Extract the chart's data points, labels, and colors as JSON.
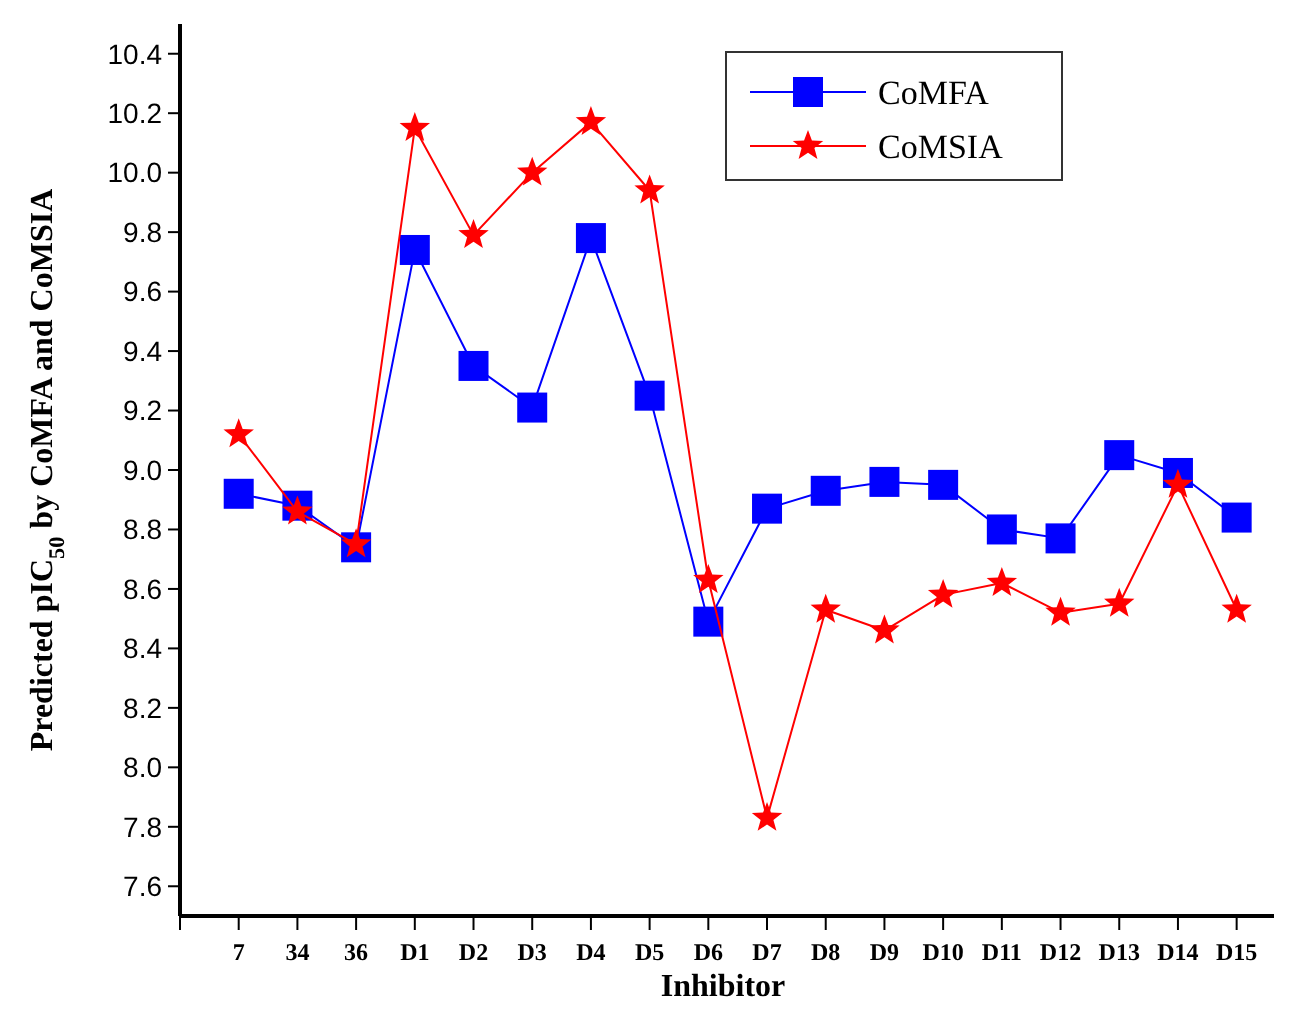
{
  "chart_data": {
    "type": "line",
    "xlabel": "Inhibitor",
    "ylabel": "Predicted pIC$_{50}$ by CoMFA and CoMSIA",
    "categories": [
      "7",
      "34",
      "36",
      "D1",
      "D2",
      "D3",
      "D4",
      "D5",
      "D6",
      "D7",
      "D8",
      "D9",
      "D10",
      "D11",
      "D12",
      "D13",
      "D14",
      "D15"
    ],
    "series": [
      {
        "name": "CoMFA",
        "color": "#0000ff",
        "marker": "square",
        "values": [
          8.92,
          8.88,
          8.74,
          9.74,
          9.35,
          9.21,
          9.78,
          9.25,
          8.49,
          8.87,
          8.93,
          8.96,
          8.95,
          8.8,
          8.77,
          9.05,
          8.99,
          8.84
        ]
      },
      {
        "name": "CoMSIA",
        "color": "#ff0000",
        "marker": "star",
        "values": [
          9.12,
          8.86,
          8.75,
          10.15,
          9.79,
          10.0,
          10.17,
          9.94,
          8.63,
          7.83,
          8.53,
          8.46,
          8.58,
          8.62,
          8.52,
          8.55,
          8.95,
          8.53
        ]
      }
    ],
    "ylim": [
      7.5,
      10.5
    ],
    "yticks": [
      {
        "value": 7.6,
        "label": "7.6"
      },
      {
        "value": 7.8,
        "label": "7.8"
      },
      {
        "value": 8.0,
        "label": "8.0"
      },
      {
        "value": 8.2,
        "label": "8.2"
      },
      {
        "value": 8.4,
        "label": "8.4"
      },
      {
        "value": 8.6,
        "label": "8.6"
      },
      {
        "value": 8.8,
        "label": "8.8"
      },
      {
        "value": 9.0,
        "label": "9.0"
      },
      {
        "value": 9.2,
        "label": "9.2"
      },
      {
        "value": 9.4,
        "label": "9.4"
      },
      {
        "value": 9.6,
        "label": "9.6"
      },
      {
        "value": 9.8,
        "label": "9.8"
      },
      {
        "value": 10.0,
        "label": "10.0"
      },
      {
        "value": 10.2,
        "label": "10.2"
      },
      {
        "value": 10.4,
        "label": "10.4"
      }
    ],
    "grid": false,
    "legend": "top right",
    "line_style": "solid"
  }
}
